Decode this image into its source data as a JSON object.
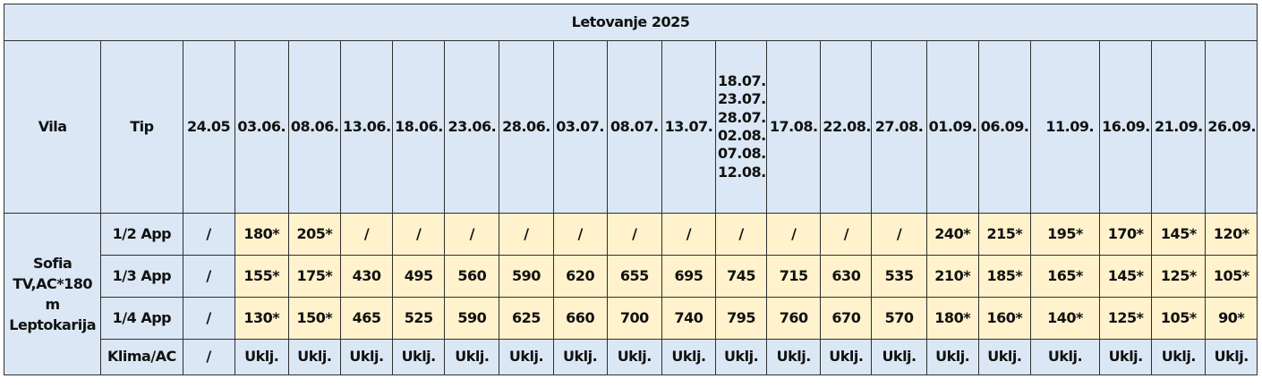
{
  "title": "Letovanje 2025",
  "headers": {
    "vila": "Vila",
    "tip": "Tip",
    "dates": [
      "24.05",
      "03.06.",
      "08.06.",
      "13.06.",
      "18.06.",
      "23.06.",
      "28.06.",
      "03.07.",
      "08.07.",
      "13.07.",
      "18.07.\n23.07.\n28.07.\n02.08.\n07.08.\n12.08.",
      "17.08.",
      "22.08.",
      "27.08.",
      "01.09.",
      "06.09.",
      "11.09.",
      "16.09.",
      "21.09.",
      "26.09."
    ]
  },
  "vila": {
    "name": "Sofia\nTV,AC*180\nm\nLeptokarija"
  },
  "rows": [
    {
      "tip": "1/2 App",
      "values": [
        "/",
        "180*",
        "205*",
        "/",
        "/",
        "/",
        "/",
        "/",
        "/",
        "/",
        "/",
        "/",
        "/",
        "/",
        "240*",
        "215*",
        "195*",
        "170*",
        "145*",
        "120*"
      ]
    },
    {
      "tip": "1/3 App",
      "values": [
        "/",
        "155*",
        "175*",
        "430",
        "495",
        "560",
        "590",
        "620",
        "655",
        "695",
        "745",
        "715",
        "630",
        "535",
        "210*",
        "185*",
        "165*",
        "145*",
        "125*",
        "105*"
      ]
    },
    {
      "tip": "1/4 App",
      "values": [
        "/",
        "130*",
        "150*",
        "465",
        "525",
        "590",
        "625",
        "660",
        "700",
        "740",
        "795",
        "760",
        "670",
        "570",
        "180*",
        "160*",
        "140*",
        "125*",
        "105*",
        "90*"
      ]
    },
    {
      "tip": "Klima/AC",
      "values": [
        "/",
        "Uklj.",
        "Uklj.",
        "Uklj.",
        "Uklj.",
        "Uklj.",
        "Uklj.",
        "Uklj.",
        "Uklj.",
        "Uklj.",
        "Uklj.",
        "Uklj.",
        "Uklj.",
        "Uklj.",
        "Uklj.",
        "Uklj.",
        "Uklj.",
        "Uklj.",
        "Uklj.",
        "Uklj."
      ]
    }
  ],
  "colors": {
    "header_bg": "#dbe7f4",
    "price_bg": "#fff2cc",
    "border": "#2f2f2f"
  }
}
